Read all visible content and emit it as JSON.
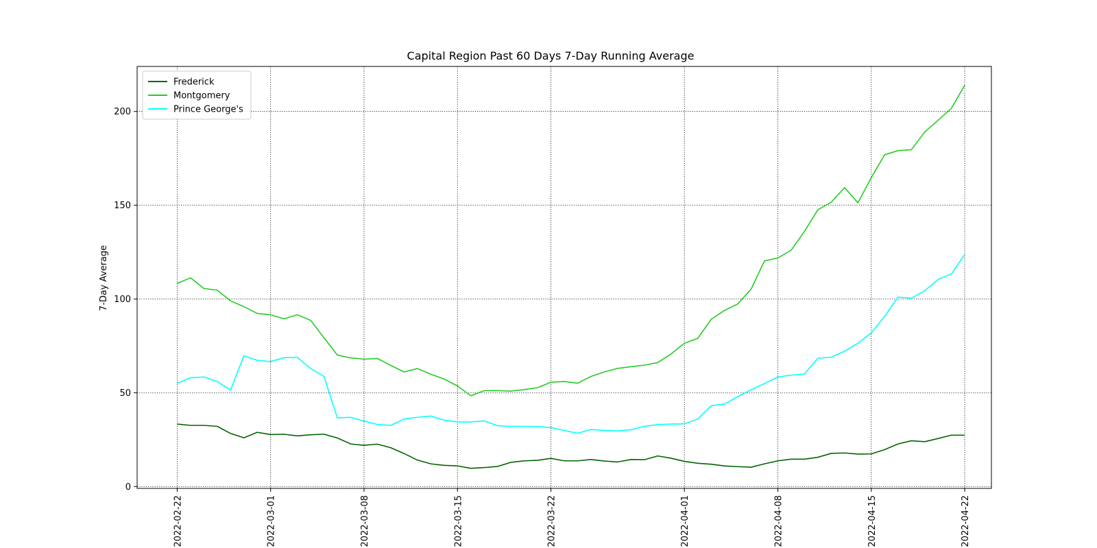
{
  "chart_data": {
    "type": "line",
    "title": "Capital Region Past 60 Days 7-Day Running Average",
    "xlabel": "",
    "ylabel": "7-Day Average",
    "x_start": "2022-02-22",
    "x_end": "2022-04-21",
    "x_ticks": [
      "2022-02-22",
      "2022-03-01",
      "2022-03-08",
      "2022-03-15",
      "2022-03-22",
      "2022-04-01",
      "2022-04-08",
      "2022-04-15",
      "2022-04-22"
    ],
    "xlim": [
      "2022-02-19",
      "2022-04-24"
    ],
    "y_ticks": [
      "0",
      "50",
      "100",
      "150",
      "200"
    ],
    "ylim": [
      -1,
      224
    ],
    "grid": true,
    "legend_position": "top-left",
    "series": [
      {
        "name": "Frederick",
        "color": "#006400",
        "values": [
          33.3,
          32.6,
          32.6,
          32.1,
          28.3,
          26.0,
          28.9,
          27.7,
          27.9,
          27.0,
          27.6,
          27.9,
          25.9,
          22.7,
          22.0,
          22.6,
          20.7,
          17.6,
          14.1,
          12.1,
          11.3,
          11.0,
          9.7,
          10.1,
          10.7,
          12.9,
          13.7,
          14.0,
          15.0,
          13.7,
          13.7,
          14.4,
          13.6,
          13.1,
          14.4,
          14.3,
          16.3,
          15.1,
          13.4,
          12.4,
          11.9,
          11.0,
          10.6,
          10.3,
          12.1,
          13.7,
          14.6,
          14.6,
          15.6,
          17.7,
          17.9,
          17.3,
          17.4,
          19.7,
          22.7,
          24.4,
          23.9,
          25.6,
          27.4,
          27.4
        ]
      },
      {
        "name": "Montgomery",
        "color": "#22cc22",
        "values": [
          108.3,
          111.3,
          105.6,
          104.7,
          99.0,
          95.9,
          92.3,
          91.6,
          89.4,
          91.6,
          88.6,
          79.3,
          70.1,
          68.6,
          67.9,
          68.3,
          64.6,
          61.1,
          62.9,
          59.9,
          57.3,
          53.6,
          48.4,
          51.1,
          51.1,
          50.9,
          51.7,
          52.7,
          55.6,
          56.0,
          55.1,
          58.7,
          61.1,
          63.0,
          63.9,
          64.7,
          66.1,
          70.7,
          76.4,
          79.0,
          89.1,
          93.9,
          97.4,
          105.3,
          120.3,
          121.9,
          126.0,
          136.1,
          147.6,
          151.6,
          159.4,
          151.3,
          164.7,
          176.9,
          179.1,
          179.6,
          189.0,
          195.3,
          201.6,
          214.0
        ]
      },
      {
        "name": "Prince George's",
        "color": "#00ffff",
        "values": [
          55.0,
          58.0,
          58.4,
          56.0,
          51.4,
          69.7,
          67.3,
          66.6,
          68.7,
          68.9,
          62.9,
          58.7,
          36.6,
          36.9,
          34.9,
          33.1,
          32.6,
          36.0,
          36.9,
          37.6,
          35.4,
          34.4,
          34.4,
          35.0,
          32.4,
          32.1,
          32.1,
          32.0,
          31.4,
          29.9,
          28.4,
          30.4,
          29.9,
          29.6,
          30.3,
          32.1,
          33.0,
          33.3,
          33.4,
          36.0,
          43.1,
          44.0,
          47.9,
          51.6,
          54.9,
          58.4,
          59.4,
          60.0,
          68.4,
          69.0,
          72.1,
          76.4,
          81.9,
          90.7,
          101.0,
          100.4,
          104.4,
          110.4,
          113.3,
          123.7
        ]
      }
    ]
  }
}
